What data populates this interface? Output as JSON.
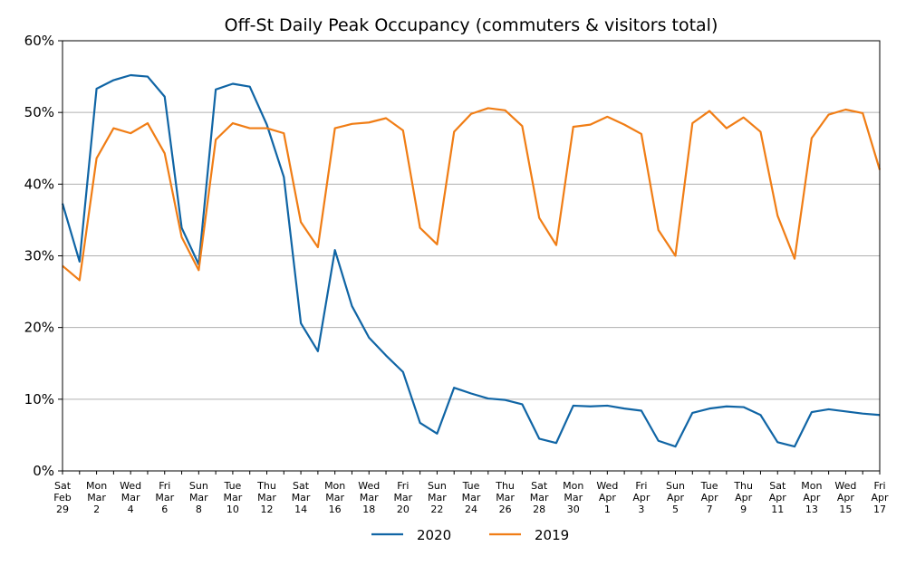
{
  "chart_data": {
    "type": "line",
    "title": "Off-St Daily Peak Occupancy (commuters & visitors total)",
    "xlabel": "",
    "ylabel": "",
    "ylim": [
      0,
      60
    ],
    "y_ticks": [
      "0%",
      "10%",
      "20%",
      "30%",
      "40%",
      "50%",
      "60%"
    ],
    "grid": "horizontal",
    "legend_position": "bottom-center",
    "x_tick_labels": [
      [
        "Sat",
        "Feb",
        "29"
      ],
      [
        "Mon",
        "Mar",
        "2"
      ],
      [
        "Wed",
        "Mar",
        "4"
      ],
      [
        "Fri",
        "Mar",
        "6"
      ],
      [
        "Sun",
        "Mar",
        "8"
      ],
      [
        "Tue",
        "Mar",
        "10"
      ],
      [
        "Thu",
        "Mar",
        "12"
      ],
      [
        "Sat",
        "Mar",
        "14"
      ],
      [
        "Mon",
        "Mar",
        "16"
      ],
      [
        "Wed",
        "Mar",
        "18"
      ],
      [
        "Fri",
        "Mar",
        "20"
      ],
      [
        "Sun",
        "Mar",
        "22"
      ],
      [
        "Tue",
        "Mar",
        "24"
      ],
      [
        "Thu",
        "Mar",
        "26"
      ],
      [
        "Sat",
        "Mar",
        "28"
      ],
      [
        "Mon",
        "Mar",
        "30"
      ],
      [
        "Wed",
        "Apr",
        "1"
      ],
      [
        "Fri",
        "Apr",
        "3"
      ],
      [
        "Sun",
        "Apr",
        "5"
      ],
      [
        "Tue",
        "Apr",
        "7"
      ],
      [
        "Thu",
        "Apr",
        "9"
      ],
      [
        "Sat",
        "Apr",
        "11"
      ],
      [
        "Mon",
        "Apr",
        "13"
      ],
      [
        "Wed",
        "Apr",
        "15"
      ],
      [
        "Fri",
        "Apr",
        "17"
      ]
    ],
    "x": [
      "Feb 29",
      "Mar 1",
      "Mar 2",
      "Mar 3",
      "Mar 4",
      "Mar 5",
      "Mar 6",
      "Mar 7",
      "Mar 8",
      "Mar 9",
      "Mar 10",
      "Mar 11",
      "Mar 12",
      "Mar 13",
      "Mar 14",
      "Mar 15",
      "Mar 16",
      "Mar 17",
      "Mar 18",
      "Mar 19",
      "Mar 20",
      "Mar 21",
      "Mar 22",
      "Mar 23",
      "Mar 24",
      "Mar 25",
      "Mar 26",
      "Mar 27",
      "Mar 28",
      "Mar 29",
      "Mar 30",
      "Mar 31",
      "Apr 1",
      "Apr 2",
      "Apr 3",
      "Apr 4",
      "Apr 5",
      "Apr 6",
      "Apr 7",
      "Apr 8",
      "Apr 9",
      "Apr 10",
      "Apr 11",
      "Apr 12",
      "Apr 13",
      "Apr 14",
      "Apr 15",
      "Apr 16",
      "Apr 17"
    ],
    "series": [
      {
        "name": "2020",
        "color": "#1065a5",
        "values": [
          37.3,
          29.2,
          53.3,
          54.5,
          55.2,
          55.0,
          52.2,
          33.9,
          28.8,
          53.2,
          54.0,
          53.6,
          48.3,
          41.0,
          20.6,
          16.7,
          30.8,
          23.0,
          18.6,
          16.1,
          13.8,
          6.7,
          5.2,
          11.6,
          10.8,
          10.1,
          9.9,
          9.3,
          4.5,
          3.9,
          9.1,
          9.0,
          9.1,
          8.7,
          8.4,
          4.2,
          3.4,
          8.1,
          8.7,
          9.0,
          8.9,
          7.8,
          4.0,
          3.4,
          8.2,
          8.6,
          8.3,
          8.0,
          7.8
        ]
      },
      {
        "name": "2019",
        "color": "#f07d15",
        "values": [
          28.6,
          26.6,
          43.6,
          47.8,
          47.1,
          48.5,
          44.3,
          32.6,
          28.0,
          46.2,
          48.5,
          47.8,
          47.8,
          47.1,
          34.7,
          31.2,
          47.8,
          48.4,
          48.6,
          49.2,
          47.5,
          33.9,
          31.6,
          47.3,
          49.8,
          50.6,
          50.3,
          48.1,
          35.3,
          31.5,
          48.0,
          48.3,
          49.4,
          48.3,
          47.0,
          33.6,
          30.0,
          48.5,
          50.2,
          47.8,
          49.3,
          47.3,
          35.6,
          29.6,
          46.4,
          49.7,
          50.4,
          49.9,
          42.0
        ]
      }
    ]
  }
}
